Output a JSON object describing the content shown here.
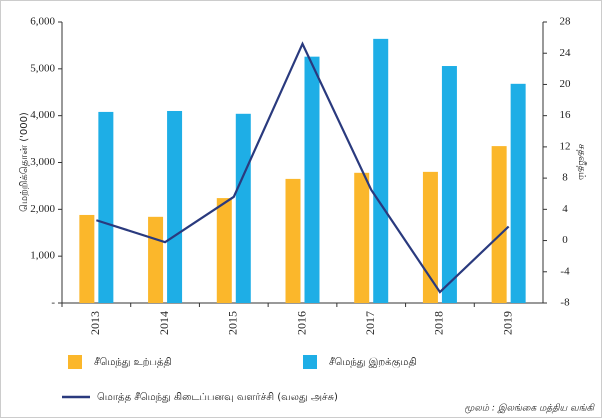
{
  "chart_data": {
    "type": "bar",
    "categories": [
      "2013",
      "2014",
      "2015",
      "2016",
      "2017",
      "2018",
      "2019"
    ],
    "series": [
      {
        "name": "சீமெந்து உற்பத்தி",
        "color": "#fbb72b",
        "type": "bar",
        "values": [
          1880,
          1840,
          2240,
          2650,
          2780,
          2800,
          3350
        ]
      },
      {
        "name": "சீமெந்து இறக்குமதி",
        "color": "#1eaee6",
        "type": "bar",
        "values": [
          4080,
          4100,
          4040,
          5260,
          5640,
          5060,
          4680
        ]
      },
      {
        "name": "மொத்த சீமெந்து கிடைப்பனவு வளர்ச்சி (வலது அச்சு)",
        "color": "#2a3a7e",
        "type": "line",
        "axis": "y2",
        "values": [
          2.6,
          -0.2,
          5.6,
          25.2,
          6.5,
          -6.6,
          1.8
        ]
      }
    ],
    "ylabel": "மெற்றிக்தொன் ('000)",
    "y2label": "சதவீதம்",
    "ylim": [
      0,
      6000
    ],
    "yticks": [
      {
        "value": 0,
        "label": "-"
      },
      {
        "value": 1000,
        "label": "1,000"
      },
      {
        "value": 2000,
        "label": "2,000"
      },
      {
        "value": 3000,
        "label": "3,000"
      },
      {
        "value": 4000,
        "label": "4,000"
      },
      {
        "value": 5000,
        "label": "5,000"
      },
      {
        "value": 6000,
        "label": "6,000"
      }
    ],
    "y2lim": [
      -8,
      28
    ],
    "y2ticks": [
      -8,
      -4,
      0,
      4,
      8,
      12,
      16,
      20,
      24,
      28
    ],
    "source": "மூலம் : இலங்கை மத்திய வங்கி"
  }
}
